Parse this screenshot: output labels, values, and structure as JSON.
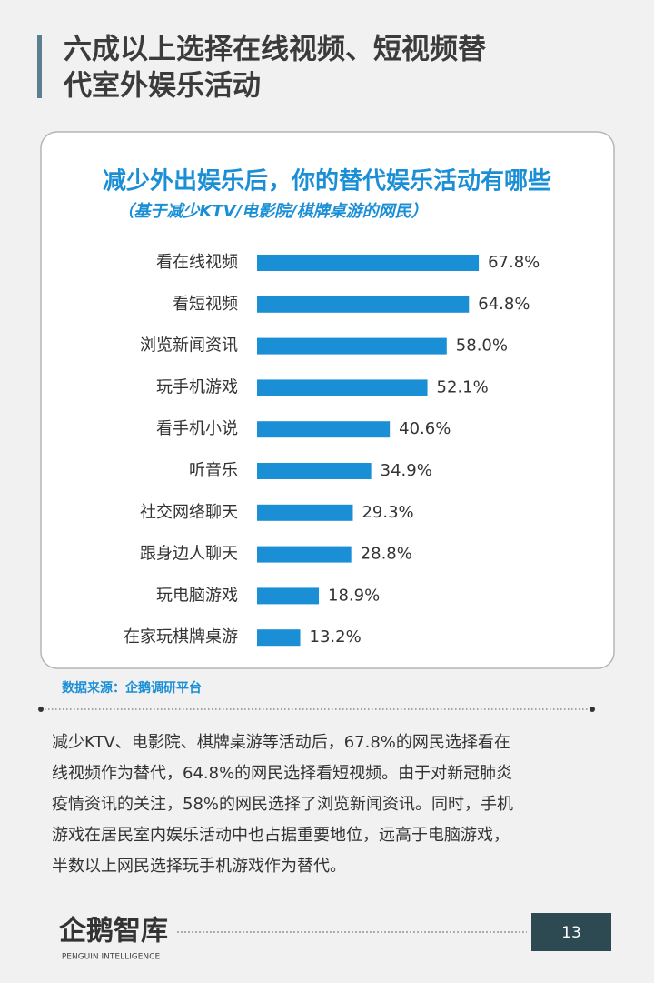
{
  "header": {
    "title_lines": [
      "六成以上选择在线视频、短视频替",
      "代室外娱乐活动"
    ]
  },
  "chart_data": {
    "type": "bar",
    "orientation": "horizontal",
    "title": "减少外出娱乐后，你的替代娱乐活动有哪些",
    "subtitle": "（基于减少KTV/电影院/棋牌桌游的网民）",
    "categories": [
      "看在线视频",
      "看短视频",
      "浏览新闻资讯",
      "玩手机游戏",
      "看手机小说",
      "听音乐",
      "社交网络聊天",
      "跟身边人聊天",
      "玩电脑游戏",
      "在家玩棋牌桌游"
    ],
    "values": [
      67.8,
      64.8,
      58.0,
      52.1,
      40.6,
      34.9,
      29.3,
      28.8,
      18.9,
      13.2
    ],
    "value_labels": [
      "67.8%",
      "64.8%",
      "58.0%",
      "52.1%",
      "40.6%",
      "34.9%",
      "29.3%",
      "28.8%",
      "18.9%",
      "13.2%"
    ],
    "color": "#1b8fd6"
  },
  "source": "数据来源：企鹅调研平台",
  "body": {
    "lines": [
      "减少KTV、电影院、棋牌桌游等活动后，67.8%的网民选择看在",
      "线视频作为替代，64.8%的网民选择看短视频。由于对新冠肺炎",
      "疫情资讯的关注，58%的网民选择了浏览新闻资讯。同时，手机",
      "游戏在居民室内娱乐活动中也占据重要地位，远高于电脑游戏，",
      "半数以上网民选择玩手机游戏作为替代。"
    ]
  },
  "footer": {
    "logo": "企鹅智库",
    "logo_sub": "PENGUIN INTELLIGENCE",
    "page_number": "13"
  }
}
